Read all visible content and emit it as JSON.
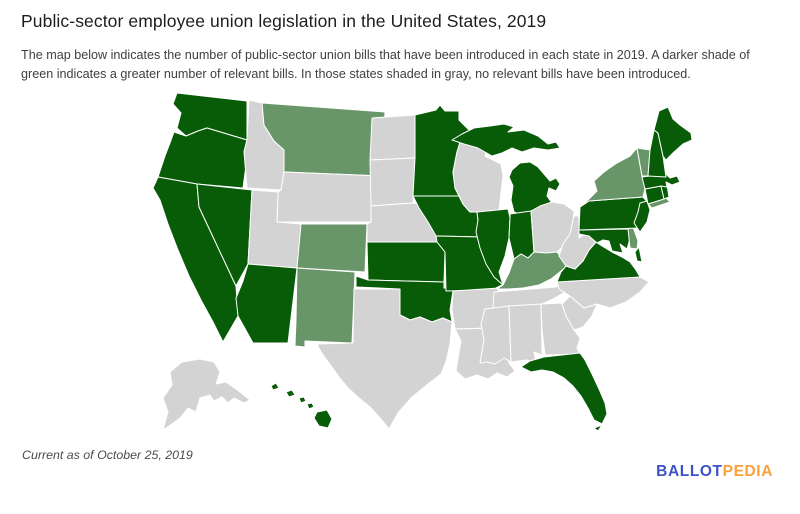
{
  "page": {
    "title": "Public-sector employee union legislation in the United States, 2019",
    "description": "The map below indicates the number of public-sector union bills that have been introduced in each state in 2019. A darker shade of green indicates a greater number of relevant bills. In those states shaded in gray, no relevant bills have been introduced.",
    "footnote": "Current as of October 25, 2019",
    "logo": {
      "ballot": "BALLOT",
      "pedia": "PEDIA",
      "ballot_color": "#3d53c5",
      "pedia_color": "#f9a13b"
    }
  },
  "map": {
    "colors": {
      "dark": "#085c08",
      "medium": "#689668",
      "gray": "#d3d3d3"
    },
    "shade_meaning": {
      "dark": "Greater number of public-sector union bills introduced in 2019",
      "medium": "Fewer public-sector union bills introduced in 2019",
      "gray": "No relevant bills introduced"
    }
  },
  "chart_data": {
    "type": "choropleth",
    "title": "Public-sector employee union legislation in the United States, 2019",
    "legend_position": "none",
    "states": [
      {
        "id": "WA",
        "name": "Washington",
        "shade": "dark"
      },
      {
        "id": "OR",
        "name": "Oregon",
        "shade": "dark"
      },
      {
        "id": "CA",
        "name": "California",
        "shade": "dark"
      },
      {
        "id": "NV",
        "name": "Nevada",
        "shade": "dark"
      },
      {
        "id": "ID",
        "name": "Idaho",
        "shade": "gray"
      },
      {
        "id": "MT",
        "name": "Montana",
        "shade": "medium"
      },
      {
        "id": "WY",
        "name": "Wyoming",
        "shade": "gray"
      },
      {
        "id": "UT",
        "name": "Utah",
        "shade": "gray"
      },
      {
        "id": "CO",
        "name": "Colorado",
        "shade": "medium"
      },
      {
        "id": "AZ",
        "name": "Arizona",
        "shade": "dark"
      },
      {
        "id": "NM",
        "name": "New Mexico",
        "shade": "medium"
      },
      {
        "id": "ND",
        "name": "North Dakota",
        "shade": "gray"
      },
      {
        "id": "SD",
        "name": "South Dakota",
        "shade": "gray"
      },
      {
        "id": "NE",
        "name": "Nebraska",
        "shade": "gray"
      },
      {
        "id": "KS",
        "name": "Kansas",
        "shade": "dark"
      },
      {
        "id": "OK",
        "name": "Oklahoma",
        "shade": "dark"
      },
      {
        "id": "TX",
        "name": "Texas",
        "shade": "gray"
      },
      {
        "id": "MN",
        "name": "Minnesota",
        "shade": "dark"
      },
      {
        "id": "IA",
        "name": "Iowa",
        "shade": "dark"
      },
      {
        "id": "MO",
        "name": "Missouri",
        "shade": "dark"
      },
      {
        "id": "AR",
        "name": "Arkansas",
        "shade": "gray"
      },
      {
        "id": "LA",
        "name": "Louisiana",
        "shade": "gray"
      },
      {
        "id": "WI",
        "name": "Wisconsin",
        "shade": "gray"
      },
      {
        "id": "IL",
        "name": "Illinois",
        "shade": "dark"
      },
      {
        "id": "MI",
        "name": "Michigan",
        "shade": "dark"
      },
      {
        "id": "IN",
        "name": "Indiana",
        "shade": "dark"
      },
      {
        "id": "OH",
        "name": "Ohio",
        "shade": "gray"
      },
      {
        "id": "KY",
        "name": "Kentucky",
        "shade": "medium"
      },
      {
        "id": "TN",
        "name": "Tennessee",
        "shade": "gray"
      },
      {
        "id": "MS",
        "name": "Mississippi",
        "shade": "gray"
      },
      {
        "id": "AL",
        "name": "Alabama",
        "shade": "gray"
      },
      {
        "id": "GA",
        "name": "Georgia",
        "shade": "gray"
      },
      {
        "id": "FL",
        "name": "Florida",
        "shade": "dark"
      },
      {
        "id": "SC",
        "name": "South Carolina",
        "shade": "gray"
      },
      {
        "id": "NC",
        "name": "North Carolina",
        "shade": "gray"
      },
      {
        "id": "VA",
        "name": "Virginia",
        "shade": "dark"
      },
      {
        "id": "WV",
        "name": "West Virginia",
        "shade": "gray"
      },
      {
        "id": "MD",
        "name": "Maryland",
        "shade": "dark"
      },
      {
        "id": "DE",
        "name": "Delaware",
        "shade": "medium"
      },
      {
        "id": "PA",
        "name": "Pennsylvania",
        "shade": "dark"
      },
      {
        "id": "NJ",
        "name": "New Jersey",
        "shade": "dark"
      },
      {
        "id": "NY",
        "name": "New York",
        "shade": "medium"
      },
      {
        "id": "CT",
        "name": "Connecticut",
        "shade": "dark"
      },
      {
        "id": "RI",
        "name": "Rhode Island",
        "shade": "dark"
      },
      {
        "id": "MA",
        "name": "Massachusetts",
        "shade": "dark"
      },
      {
        "id": "VT",
        "name": "Vermont",
        "shade": "medium"
      },
      {
        "id": "NH",
        "name": "New Hampshire",
        "shade": "dark"
      },
      {
        "id": "ME",
        "name": "Maine",
        "shade": "dark"
      },
      {
        "id": "AK",
        "name": "Alaska",
        "shade": "gray"
      },
      {
        "id": "HI",
        "name": "Hawaii",
        "shade": "dark"
      }
    ]
  }
}
